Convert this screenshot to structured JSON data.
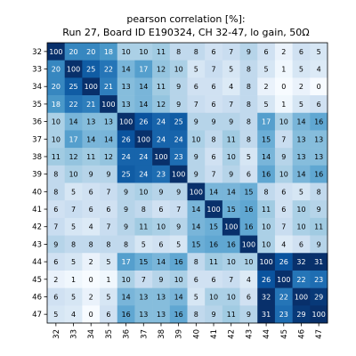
{
  "chart_data": {
    "type": "heatmap",
    "title": "pearson correlation [%]:",
    "subtitle": "Run 27, Board ID E190324, CH 32-47, lo gain, 50Ω",
    "xlabel": "",
    "ylabel": "",
    "x_categories": [
      "32",
      "33",
      "34",
      "35",
      "36",
      "37",
      "38",
      "39",
      "40",
      "41",
      "42",
      "43",
      "44",
      "45",
      "46",
      "47"
    ],
    "y_categories": [
      "32",
      "33",
      "34",
      "35",
      "36",
      "37",
      "38",
      "39",
      "40",
      "41",
      "42",
      "43",
      "44",
      "45",
      "46",
      "47"
    ],
    "values": [
      [
        100,
        20,
        20,
        18,
        10,
        10,
        11,
        8,
        8,
        6,
        7,
        9,
        6,
        2,
        6,
        5
      ],
      [
        20,
        100,
        25,
        22,
        14,
        17,
        12,
        10,
        5,
        7,
        5,
        8,
        5,
        1,
        5,
        4
      ],
      [
        20,
        25,
        100,
        21,
        13,
        14,
        11,
        9,
        6,
        6,
        4,
        8,
        2,
        0,
        2,
        0
      ],
      [
        18,
        22,
        21,
        100,
        13,
        14,
        12,
        9,
        7,
        6,
        7,
        8,
        5,
        1,
        5,
        6
      ],
      [
        10,
        14,
        13,
        13,
        100,
        26,
        24,
        25,
        9,
        9,
        9,
        8,
        17,
        10,
        14,
        16
      ],
      [
        10,
        17,
        14,
        14,
        26,
        100,
        24,
        24,
        10,
        8,
        11,
        8,
        15,
        7,
        13,
        13
      ],
      [
        11,
        12,
        11,
        12,
        24,
        24,
        100,
        23,
        9,
        6,
        10,
        5,
        14,
        9,
        13,
        13
      ],
      [
        8,
        10,
        9,
        9,
        25,
        24,
        23,
        100,
        9,
        7,
        9,
        6,
        16,
        10,
        14,
        16
      ],
      [
        8,
        5,
        6,
        7,
        9,
        10,
        9,
        9,
        100,
        14,
        14,
        15,
        8,
        6,
        5,
        8
      ],
      [
        6,
        7,
        6,
        6,
        9,
        8,
        6,
        7,
        14,
        100,
        15,
        16,
        11,
        6,
        10,
        9
      ],
      [
        7,
        5,
        4,
        7,
        9,
        11,
        10,
        9,
        14,
        15,
        100,
        16,
        10,
        7,
        10,
        11
      ],
      [
        9,
        8,
        8,
        8,
        8,
        5,
        6,
        5,
        15,
        16,
        16,
        100,
        10,
        4,
        6,
        9
      ],
      [
        6,
        5,
        2,
        5,
        17,
        15,
        14,
        16,
        8,
        11,
        10,
        10,
        100,
        26,
        32,
        31
      ],
      [
        2,
        1,
        0,
        1,
        10,
        7,
        9,
        10,
        6,
        6,
        7,
        4,
        26,
        100,
        22,
        23
      ],
      [
        6,
        5,
        2,
        5,
        14,
        13,
        13,
        14,
        5,
        10,
        10,
        6,
        32,
        22,
        100,
        29
      ],
      [
        5,
        4,
        0,
        6,
        16,
        13,
        13,
        16,
        8,
        9,
        11,
        9,
        31,
        23,
        29,
        100
      ]
    ],
    "colormap": "Blues",
    "color_range": [
      0,
      30
    ],
    "low_color": "#f7fbff",
    "high_color": "#08306b",
    "grid": false,
    "legend": "none"
  }
}
